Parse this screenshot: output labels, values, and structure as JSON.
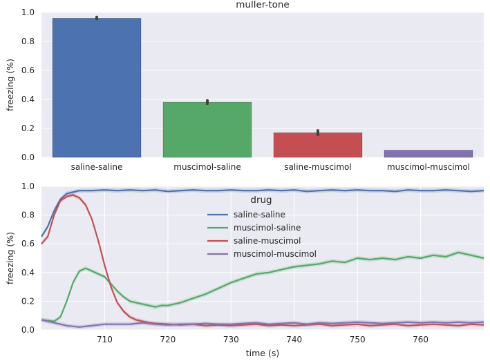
{
  "chart_data": [
    {
      "type": "bar",
      "title": "muller-tone",
      "xlabel": "",
      "ylabel": "freezing (%)",
      "ylim": [
        0,
        1.0
      ],
      "yticks": [
        "0.0",
        "0.2",
        "0.4",
        "0.6",
        "0.8",
        "1.0"
      ],
      "grid": true,
      "categories": [
        "saline-saline",
        "muscimol-saline",
        "saline-muscimol",
        "muscimol-muscimol"
      ],
      "values": [
        0.96,
        0.38,
        0.17,
        0.05
      ],
      "error": [
        [
          0.955,
          0.968
        ],
        [
          0.37,
          0.392
        ],
        [
          0.157,
          0.185
        ],
        [
          0.05,
          0.05
        ]
      ],
      "colors": [
        "#4c72b0",
        "#55a868",
        "#c44e52",
        "#8172b2"
      ]
    },
    {
      "type": "line",
      "title": "",
      "xlabel": "time (s)",
      "ylabel": "freezing (%)",
      "xlim": [
        700,
        770
      ],
      "ylim": [
        0,
        1.0
      ],
      "xticks": [
        "710",
        "720",
        "730",
        "740",
        "750",
        "760"
      ],
      "yticks": [
        "0.0",
        "0.2",
        "0.4",
        "0.6",
        "0.8",
        "1.0"
      ],
      "grid": true,
      "legend": {
        "title": "drug",
        "position": "top-center"
      },
      "series": [
        {
          "name": "saline-saline",
          "color": "#4c72b0",
          "x": [
            700,
            701,
            702,
            703,
            704,
            705,
            706,
            707,
            708,
            710,
            712,
            714,
            716,
            718,
            720,
            722,
            724,
            726,
            728,
            730,
            732,
            734,
            736,
            738,
            740,
            742,
            744,
            746,
            748,
            750,
            752,
            754,
            756,
            758,
            760,
            762,
            764,
            766,
            768,
            770
          ],
          "y": [
            0.65,
            0.72,
            0.83,
            0.91,
            0.95,
            0.96,
            0.97,
            0.97,
            0.97,
            0.975,
            0.97,
            0.975,
            0.97,
            0.975,
            0.965,
            0.97,
            0.975,
            0.97,
            0.97,
            0.975,
            0.97,
            0.97,
            0.975,
            0.97,
            0.975,
            0.965,
            0.97,
            0.975,
            0.97,
            0.975,
            0.97,
            0.97,
            0.965,
            0.975,
            0.97,
            0.97,
            0.975,
            0.97,
            0.965,
            0.97
          ]
        },
        {
          "name": "muscimol-saline",
          "color": "#55a868",
          "x": [
            700,
            701,
            702,
            703,
            704,
            705,
            706,
            707,
            708,
            709,
            710,
            711,
            712,
            713,
            714,
            715,
            716,
            717,
            718,
            719,
            720,
            722,
            724,
            726,
            728,
            730,
            732,
            734,
            736,
            738,
            740,
            742,
            744,
            746,
            748,
            750,
            752,
            754,
            756,
            758,
            760,
            762,
            764,
            766,
            768,
            770
          ],
          "y": [
            0.07,
            0.065,
            0.06,
            0.09,
            0.2,
            0.33,
            0.41,
            0.43,
            0.41,
            0.39,
            0.37,
            0.32,
            0.27,
            0.23,
            0.2,
            0.19,
            0.18,
            0.17,
            0.16,
            0.17,
            0.17,
            0.19,
            0.22,
            0.25,
            0.29,
            0.33,
            0.36,
            0.39,
            0.4,
            0.42,
            0.44,
            0.45,
            0.46,
            0.48,
            0.47,
            0.5,
            0.49,
            0.5,
            0.49,
            0.51,
            0.5,
            0.52,
            0.51,
            0.54,
            0.52,
            0.5
          ]
        },
        {
          "name": "saline-muscimol",
          "color": "#c44e52",
          "x": [
            700,
            701,
            702,
            703,
            704,
            705,
            706,
            707,
            708,
            709,
            710,
            711,
            712,
            713,
            714,
            715,
            716,
            717,
            718,
            720,
            722,
            724,
            726,
            728,
            730,
            732,
            734,
            736,
            738,
            740,
            742,
            744,
            746,
            748,
            750,
            752,
            754,
            756,
            758,
            760,
            762,
            764,
            766,
            768,
            770
          ],
          "y": [
            0.6,
            0.65,
            0.8,
            0.9,
            0.93,
            0.94,
            0.92,
            0.87,
            0.77,
            0.62,
            0.45,
            0.3,
            0.19,
            0.13,
            0.09,
            0.07,
            0.06,
            0.05,
            0.045,
            0.04,
            0.035,
            0.04,
            0.03,
            0.035,
            0.03,
            0.035,
            0.04,
            0.03,
            0.035,
            0.03,
            0.035,
            0.04,
            0.03,
            0.035,
            0.04,
            0.03,
            0.035,
            0.04,
            0.03,
            0.035,
            0.04,
            0.035,
            0.03,
            0.04,
            0.035
          ]
        },
        {
          "name": "muscimol-muscimol",
          "color": "#8172b2",
          "x": [
            700,
            702,
            704,
            706,
            708,
            710,
            712,
            714,
            716,
            718,
            720,
            722,
            724,
            726,
            728,
            730,
            732,
            734,
            736,
            738,
            740,
            742,
            744,
            746,
            748,
            750,
            752,
            754,
            756,
            758,
            760,
            762,
            764,
            766,
            768,
            770
          ],
          "y": [
            0.07,
            0.05,
            0.03,
            0.02,
            0.03,
            0.04,
            0.04,
            0.04,
            0.05,
            0.04,
            0.035,
            0.04,
            0.04,
            0.045,
            0.04,
            0.04,
            0.045,
            0.05,
            0.04,
            0.045,
            0.05,
            0.04,
            0.05,
            0.045,
            0.05,
            0.055,
            0.05,
            0.045,
            0.05,
            0.055,
            0.05,
            0.055,
            0.05,
            0.055,
            0.05,
            0.055
          ]
        }
      ]
    }
  ]
}
